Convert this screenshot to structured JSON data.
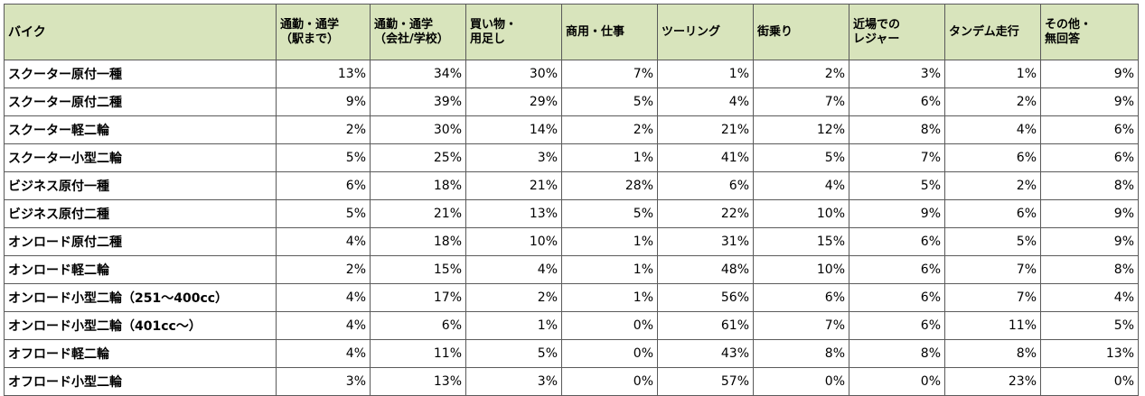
{
  "chart_data": {
    "type": "table",
    "columns": [
      {
        "lines": [
          "バイク"
        ]
      },
      {
        "lines": [
          "通勤・通学",
          "（駅まで）"
        ]
      },
      {
        "lines": [
          "通勤・通学",
          "（会社/学校）"
        ]
      },
      {
        "lines": [
          "買い物・",
          "用足し"
        ]
      },
      {
        "lines": [
          "商用・仕事"
        ]
      },
      {
        "lines": [
          "ツーリング"
        ]
      },
      {
        "lines": [
          "街乗り"
        ]
      },
      {
        "lines": [
          "近場での",
          "レジャー"
        ]
      },
      {
        "lines": [
          "タンデム走行"
        ]
      },
      {
        "lines": [
          "その他・",
          "無回答"
        ]
      }
    ],
    "rows": [
      {
        "label": "スクーター原付一種",
        "values": [
          "13%",
          "34%",
          "30%",
          "7%",
          "1%",
          "2%",
          "3%",
          "1%",
          "9%"
        ]
      },
      {
        "label": "スクーター原付二種",
        "values": [
          "9%",
          "39%",
          "29%",
          "5%",
          "4%",
          "7%",
          "6%",
          "2%",
          "9%"
        ]
      },
      {
        "label": "スクーター軽二輪",
        "values": [
          "2%",
          "30%",
          "14%",
          "2%",
          "21%",
          "12%",
          "8%",
          "4%",
          "6%"
        ]
      },
      {
        "label": "スクーター小型二輪",
        "values": [
          "5%",
          "25%",
          "3%",
          "1%",
          "41%",
          "5%",
          "7%",
          "6%",
          "6%"
        ]
      },
      {
        "label": "ビジネス原付一種",
        "values": [
          "6%",
          "18%",
          "21%",
          "28%",
          "6%",
          "4%",
          "5%",
          "2%",
          "8%"
        ]
      },
      {
        "label": "ビジネス原付二種",
        "values": [
          "5%",
          "21%",
          "13%",
          "5%",
          "22%",
          "10%",
          "9%",
          "6%",
          "9%"
        ]
      },
      {
        "label": "オンロード原付二種",
        "values": [
          "4%",
          "18%",
          "10%",
          "1%",
          "31%",
          "15%",
          "6%",
          "5%",
          "9%"
        ]
      },
      {
        "label": "オンロード軽二輪",
        "values": [
          "2%",
          "15%",
          "4%",
          "1%",
          "48%",
          "10%",
          "6%",
          "7%",
          "8%"
        ]
      },
      {
        "label": "オンロード小型二輪（251～400cc）",
        "values": [
          "4%",
          "17%",
          "2%",
          "1%",
          "56%",
          "6%",
          "6%",
          "7%",
          "4%"
        ]
      },
      {
        "label": "オンロード小型二輪（401cc～）",
        "values": [
          "4%",
          "6%",
          "1%",
          "0%",
          "61%",
          "7%",
          "6%",
          "11%",
          "5%"
        ]
      },
      {
        "label": "オフロード軽二輪",
        "values": [
          "4%",
          "11%",
          "5%",
          "0%",
          "43%",
          "8%",
          "8%",
          "8%",
          "13%"
        ]
      },
      {
        "label": "オフロード小型二輪",
        "values": [
          "3%",
          "13%",
          "3%",
          "0%",
          "57%",
          "0%",
          "0%",
          "23%",
          "0%"
        ]
      }
    ],
    "colors": {
      "header_background": "#d8e4bc",
      "border": "#5a5a5a"
    }
  }
}
